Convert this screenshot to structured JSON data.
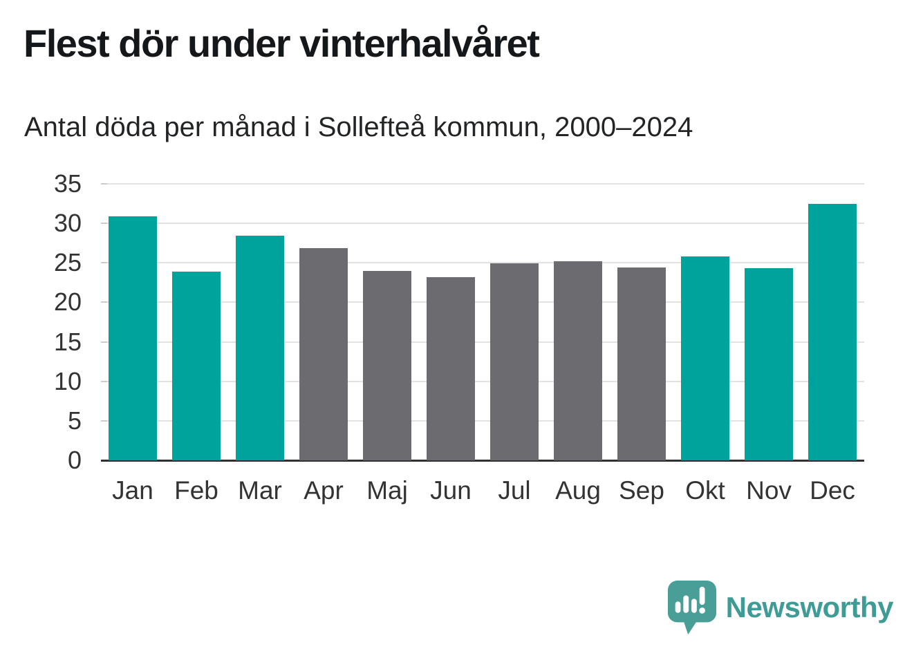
{
  "header": {
    "title": "Flest dör under vinterhalvåret",
    "subtitle": "Antal döda per månad i Sollefteå kommun, 2000–2024"
  },
  "chart_data": {
    "type": "bar",
    "title": "Flest dör under vinterhalvåret",
    "subtitle": "Antal döda per månad i Sollefteå kommun, 2000–2024",
    "categories": [
      "Jan",
      "Feb",
      "Mar",
      "Apr",
      "Maj",
      "Jun",
      "Jul",
      "Aug",
      "Sep",
      "Okt",
      "Nov",
      "Dec"
    ],
    "values": [
      30.9,
      23.9,
      28.4,
      26.9,
      24.0,
      23.2,
      24.9,
      25.2,
      24.4,
      25.8,
      24.3,
      32.5
    ],
    "bar_palette": [
      "teal",
      "teal",
      "teal",
      "gray",
      "gray",
      "gray",
      "gray",
      "gray",
      "gray",
      "teal",
      "teal",
      "teal"
    ],
    "colors": {
      "teal": "#00a39b",
      "gray": "#6b6b70"
    },
    "xlabel": "",
    "ylabel": "",
    "ylim": [
      0,
      35
    ],
    "yticks": [
      0,
      5,
      10,
      15,
      20,
      25,
      30,
      35
    ],
    "grid": true,
    "legend": false
  },
  "footer": {
    "brand": "Newsworthy",
    "brand_color": "#3f9b95",
    "logo_icon": "newsworthy-speech-bubble-barchart-icon",
    "logo_icon_color": "#4a9e98"
  },
  "theme": {
    "background": "#ffffff",
    "title_color": "#15181b",
    "axis_text_color": "#333333",
    "gridline_color": "#e2e2e2",
    "baseline_color": "#303030"
  }
}
